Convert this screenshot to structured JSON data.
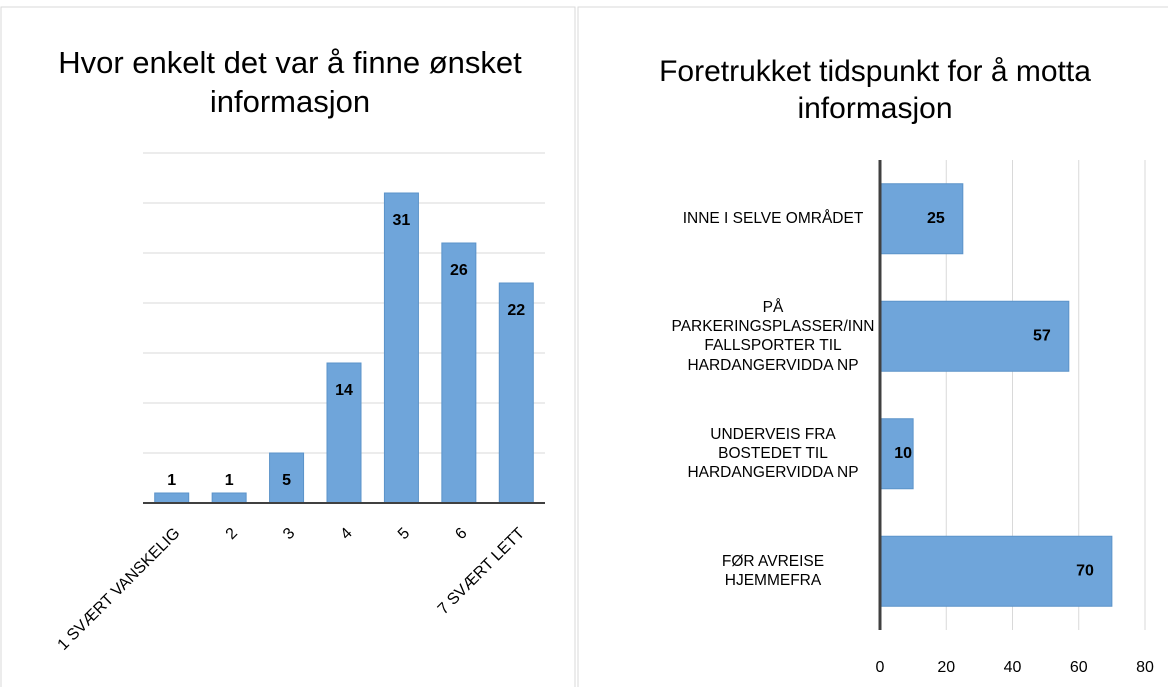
{
  "chart_data": [
    {
      "type": "bar",
      "title": "Hvor enkelt det var å finne ønsket informasjon",
      "categories": [
        "1 SVÆRT VANSKELIG",
        "2",
        "3",
        "4",
        "5",
        "6",
        "7 SVÆRT LETT"
      ],
      "values": [
        1,
        1,
        5,
        14,
        31,
        26,
        22
      ],
      "color": "#6fa5da",
      "ylim": [
        0,
        35
      ],
      "yticks": [
        0,
        5,
        10,
        15,
        20,
        25,
        30,
        35
      ],
      "grid": true
    },
    {
      "type": "barh",
      "title": "Foretrukket tidspunkt for å motta informasjon",
      "categories": [
        "INNE I SELVE OMRÅDET",
        "PÅ PARKERINGSPLASSER/INN FALLSPORTER TIL HARDANGERVIDDA NP",
        "UNDERVEIS FRA BOSTEDET TIL HARDANGERVIDDA NP",
        "FØR AVREISE HJEMMEFRA"
      ],
      "values": [
        25,
        57,
        10,
        70
      ],
      "color": "#6fa5da",
      "xlim": [
        0,
        80
      ],
      "xticks": [
        0,
        20,
        40,
        60,
        80
      ],
      "grid": true
    }
  ]
}
